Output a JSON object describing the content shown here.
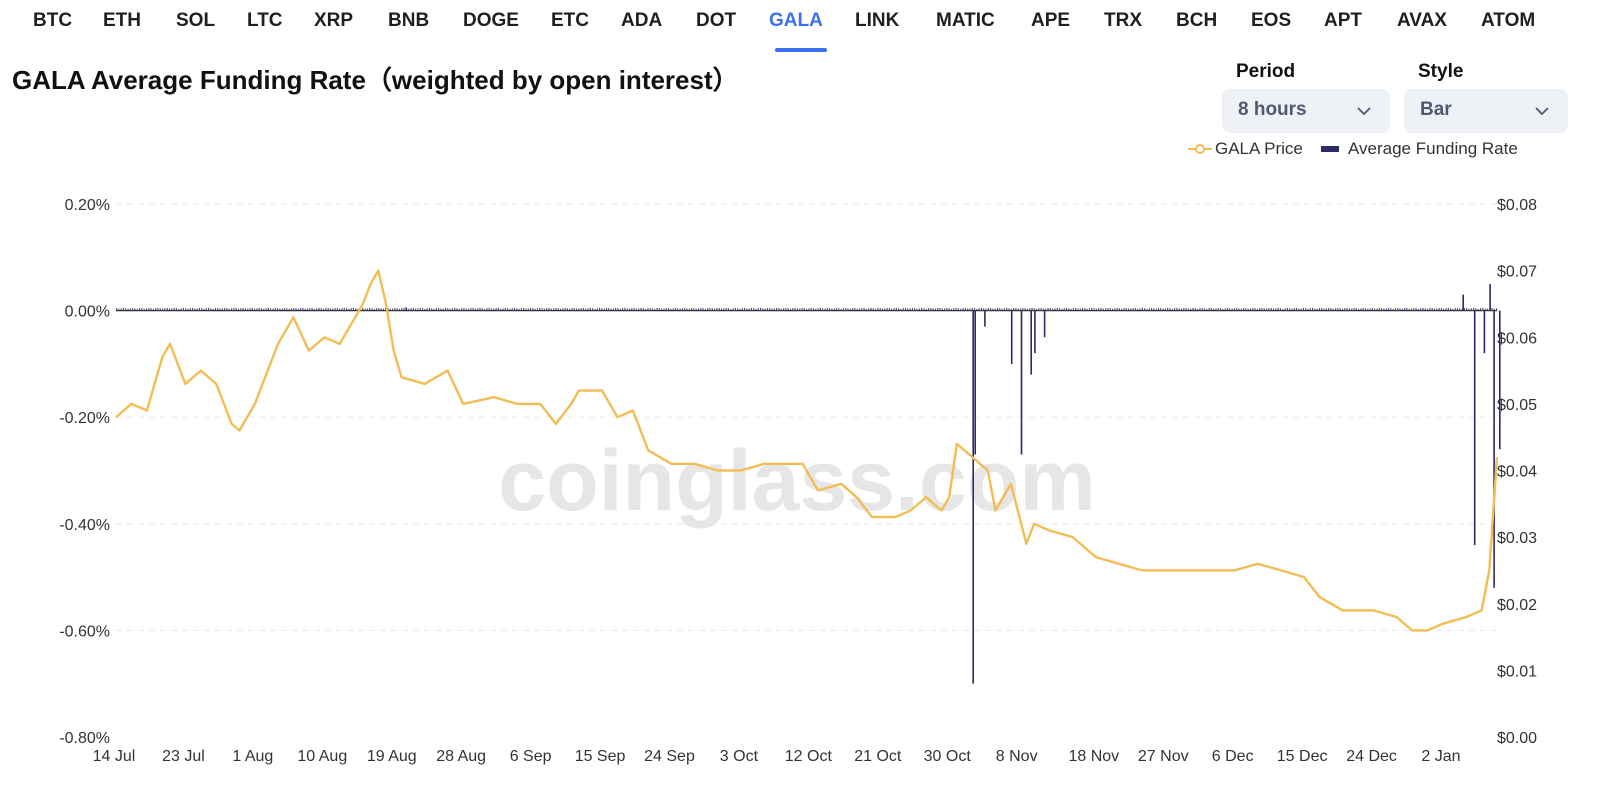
{
  "nav": {
    "tabs": [
      "BTC",
      "ETH",
      "SOL",
      "LTC",
      "XRP",
      "BNB",
      "DOGE",
      "ETC",
      "ADA",
      "DOT",
      "GALA",
      "LINK",
      "MATIC",
      "APE",
      "TRX",
      "BCH",
      "EOS",
      "APT",
      "AVAX",
      "ATOM"
    ],
    "active": "GALA"
  },
  "header": {
    "title": "GALA Average Funding Rate（weighted by open interest）"
  },
  "controls": {
    "period_label": "Period",
    "period_value": "8 hours",
    "style_label": "Style",
    "style_value": "Bar"
  },
  "colors": {
    "accent": "#3d6ff0",
    "price_line": "#f2bd55",
    "funding_bar": "#2e2a67",
    "watermark": "#e6e6e6"
  },
  "watermark": "coinglass.com",
  "chart_data": {
    "type": "bar+line",
    "title": "GALA Average Funding Rate（weighted by open interest）",
    "legend": [
      "GALA Price",
      "Average Funding Rate"
    ],
    "legend_position": "top-right",
    "grid": true,
    "x_ticks": [
      "14 Jul",
      "23 Jul",
      "1 Aug",
      "10 Aug",
      "19 Aug",
      "28 Aug",
      "6 Sep",
      "15 Sep",
      "24 Sep",
      "3 Oct",
      "12 Oct",
      "21 Oct",
      "30 Oct",
      "8 Nov",
      "18 Nov",
      "27 Nov",
      "6 Dec",
      "15 Dec",
      "24 Dec",
      "2 Jan"
    ],
    "x_range": [
      "14 Jul",
      "9 Jan"
    ],
    "y_left": {
      "label": "Average Funding Rate",
      "ticks": [
        "0.20%",
        "0.00%",
        "-0.20%",
        "-0.40%",
        "-0.60%",
        "-0.80%"
      ],
      "range": [
        -0.8,
        0.2
      ]
    },
    "y_right": {
      "label": "GALA Price",
      "ticks": [
        "$0.08",
        "$0.07",
        "$0.06",
        "$0.05",
        "$0.04",
        "$0.03",
        "$0.02",
        "$0.01",
        "$0.00"
      ],
      "range": [
        0,
        0.08
      ]
    },
    "series": [
      {
        "name": "GALA Price",
        "kind": "line",
        "axis": "right",
        "points": [
          [
            "14 Jul",
            0.048
          ],
          [
            "16 Jul",
            0.05
          ],
          [
            "18 Jul",
            0.049
          ],
          [
            "20 Jul",
            0.057
          ],
          [
            "21 Jul",
            0.059
          ],
          [
            "23 Jul",
            0.053
          ],
          [
            "25 Jul",
            0.055
          ],
          [
            "27 Jul",
            0.053
          ],
          [
            "29 Jul",
            0.047
          ],
          [
            "30 Jul",
            0.046
          ],
          [
            "1 Aug",
            0.05
          ],
          [
            "3 Aug",
            0.056
          ],
          [
            "4 Aug",
            0.059
          ],
          [
            "6 Aug",
            0.063
          ],
          [
            "8 Aug",
            0.058
          ],
          [
            "10 Aug",
            0.06
          ],
          [
            "12 Aug",
            0.059
          ],
          [
            "14 Aug",
            0.063
          ],
          [
            "15 Aug",
            0.065
          ],
          [
            "16 Aug",
            0.068
          ],
          [
            "17 Aug",
            0.07
          ],
          [
            "18 Aug",
            0.065
          ],
          [
            "19 Aug",
            0.058
          ],
          [
            "20 Aug",
            0.054
          ],
          [
            "23 Aug",
            0.053
          ],
          [
            "26 Aug",
            0.055
          ],
          [
            "28 Aug",
            0.05
          ],
          [
            "1 Sep",
            0.051
          ],
          [
            "4 Sep",
            0.05
          ],
          [
            "7 Sep",
            0.05
          ],
          [
            "9 Sep",
            0.047
          ],
          [
            "11 Sep",
            0.05
          ],
          [
            "12 Sep",
            0.052
          ],
          [
            "15 Sep",
            0.052
          ],
          [
            "17 Sep",
            0.048
          ],
          [
            "19 Sep",
            0.049
          ],
          [
            "21 Sep",
            0.043
          ],
          [
            "24 Sep",
            0.041
          ],
          [
            "27 Sep",
            0.041
          ],
          [
            "30 Sep",
            0.04
          ],
          [
            "3 Oct",
            0.04
          ],
          [
            "6 Oct",
            0.041
          ],
          [
            "9 Oct",
            0.041
          ],
          [
            "11 Oct",
            0.041
          ],
          [
            "13 Oct",
            0.037
          ],
          [
            "16 Oct",
            0.038
          ],
          [
            "18 Oct",
            0.036
          ],
          [
            "20 Oct",
            0.033
          ],
          [
            "23 Oct",
            0.033
          ],
          [
            "25 Oct",
            0.034
          ],
          [
            "27 Oct",
            0.036
          ],
          [
            "29 Oct",
            0.034
          ],
          [
            "30 Oct",
            0.036
          ],
          [
            "31 Oct",
            0.044
          ],
          [
            "2 Nov",
            0.042
          ],
          [
            "4 Nov",
            0.04
          ],
          [
            "5 Nov",
            0.034
          ],
          [
            "7 Nov",
            0.038
          ],
          [
            "9 Nov",
            0.029
          ],
          [
            "10 Nov",
            0.032
          ],
          [
            "12 Nov",
            0.031
          ],
          [
            "15 Nov",
            0.03
          ],
          [
            "18 Nov",
            0.027
          ],
          [
            "21 Nov",
            0.026
          ],
          [
            "24 Nov",
            0.025
          ],
          [
            "27 Nov",
            0.025
          ],
          [
            "1 Dec",
            0.025
          ],
          [
            "4 Dec",
            0.025
          ],
          [
            "6 Dec",
            0.025
          ],
          [
            "9 Dec",
            0.026
          ],
          [
            "12 Dec",
            0.025
          ],
          [
            "15 Dec",
            0.024
          ],
          [
            "17 Dec",
            0.021
          ],
          [
            "20 Dec",
            0.019
          ],
          [
            "24 Dec",
            0.019
          ],
          [
            "27 Dec",
            0.018
          ],
          [
            "29 Dec",
            0.016
          ],
          [
            "31 Dec",
            0.016
          ],
          [
            "2 Jan",
            0.017
          ],
          [
            "5 Jan",
            0.018
          ],
          [
            "7 Jan",
            0.019
          ],
          [
            "8 Jan",
            0.025
          ],
          [
            "9 Jan",
            0.042
          ]
        ]
      },
      {
        "name": "Average Funding Rate",
        "kind": "bar",
        "axis": "left",
        "baseline": 0.005,
        "notable_values": [
          [
            "2 Nov",
            -0.7
          ],
          [
            "2 Nov",
            -0.27
          ],
          [
            "3 Nov",
            -0.03
          ],
          [
            "7 Nov",
            -0.1
          ],
          [
            "8 Nov",
            -0.27
          ],
          [
            "9 Nov",
            -0.12
          ],
          [
            "10 Nov",
            -0.08
          ],
          [
            "11 Nov",
            -0.05
          ],
          [
            "20 Aug",
            0.006
          ],
          [
            "6 Jan",
            -0.44
          ],
          [
            "7 Jan",
            -0.08
          ],
          [
            "8 Jan",
            -0.52
          ],
          [
            "8 Jan",
            0.05
          ],
          [
            "9 Jan",
            -0.26
          ],
          [
            "4 Jan",
            0.03
          ]
        ]
      }
    ]
  }
}
